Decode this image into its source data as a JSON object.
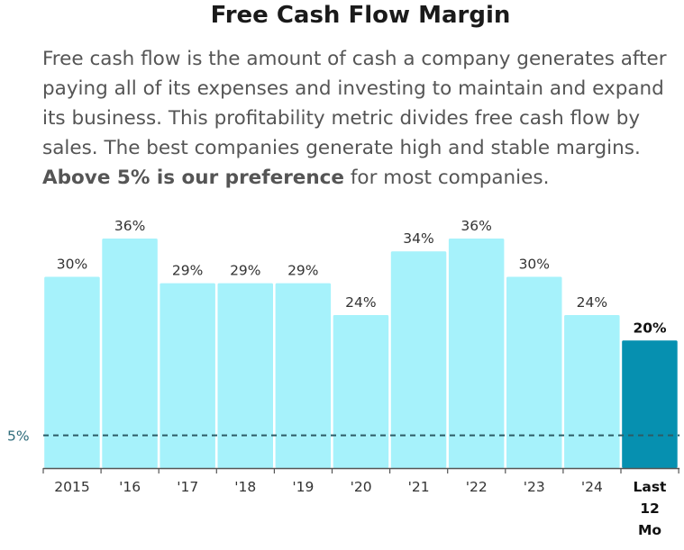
{
  "title": "Free Cash Flow Margin",
  "description": {
    "intro": "Free cash flow is the amount of cash a company generates after paying all of its expenses and investing to maintain and expand its business. This profitability metric divides free cash flow by sales. The best companies generate high and stable margins.",
    "emphasis": "Above 5% is our preference",
    "outro": "for most companies."
  },
  "colors": {
    "bar": "#a6f2fb",
    "highlight_bar": "#0690b0",
    "reference_line": "#2d5c66",
    "axis": "#555555"
  },
  "chart_data": {
    "type": "bar",
    "title": "Free Cash Flow Margin",
    "categories": [
      "2015",
      "'16",
      "'17",
      "'18",
      "'19",
      "'20",
      "'21",
      "'22",
      "'23",
      "'24",
      "Last 12 Mo"
    ],
    "values": [
      30,
      36,
      29,
      29,
      29,
      24,
      34,
      36,
      30,
      24,
      20
    ],
    "value_labels": [
      "30%",
      "36%",
      "29%",
      "29%",
      "29%",
      "24%",
      "34%",
      "36%",
      "30%",
      "24%",
      "20%"
    ],
    "highlight_index": 10,
    "reference_line": {
      "value": 5,
      "label": "5%"
    },
    "ylim": [
      0,
      40
    ],
    "xlabel": "",
    "ylabel": "",
    "grid": false
  }
}
